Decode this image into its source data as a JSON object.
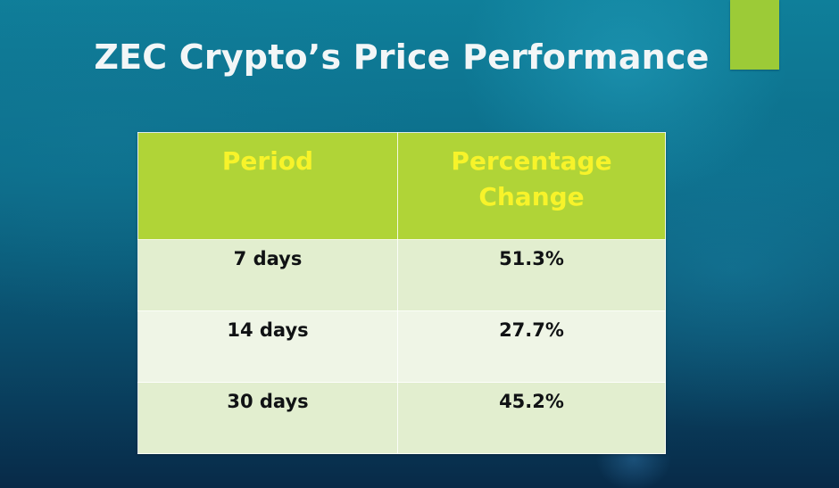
{
  "slide": {
    "title": "ZEC Crypto’s Price Performance"
  },
  "table": {
    "headers": [
      "Period",
      "Percentage\nChange"
    ],
    "rows": [
      [
        "7 days",
        "51.3%"
      ],
      [
        "14 days",
        "27.7%"
      ],
      [
        "30 days",
        "45.2%"
      ]
    ]
  },
  "colors": {
    "header_bg": "#b0d437",
    "header_text": "#f7f32a",
    "row_alt_1": "#e2eecf",
    "row_alt_2": "#eff5e6",
    "accent_block": "#9ccb37",
    "title_text": "#f2f6f7"
  }
}
